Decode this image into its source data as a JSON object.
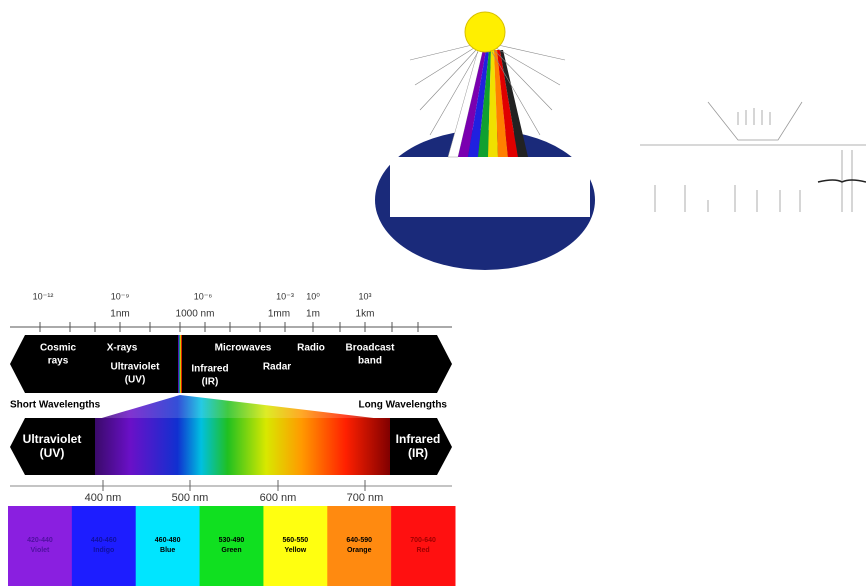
{
  "spectrum": {
    "scale": [
      {
        "power": "10⁻¹²"
      },
      {
        "power": "10⁻⁹",
        "unit": "1nm"
      },
      {
        "power": "10⁻⁶",
        "unit": "1000 nm"
      },
      {
        "power": "10⁻³",
        "unit": "1mm"
      },
      {
        "power": "10⁰",
        "unit": "1m"
      },
      {
        "power": "10³",
        "unit": "1km"
      }
    ],
    "bands": [
      [
        "Cosmic",
        "rays"
      ],
      [
        "X-rays"
      ],
      [
        "Ultraviolet",
        "(UV)"
      ],
      [
        "Infrared",
        "(IR)"
      ],
      [
        "Microwaves"
      ],
      [
        "Radar"
      ],
      [
        "Radio"
      ],
      [
        "Broadcast",
        "band"
      ]
    ],
    "short_label": "Short Wavelengths",
    "long_label": "Long Wavelengths",
    "visible_ends": [
      [
        "Ultraviolet",
        "(UV)"
      ],
      [
        "Infrared",
        "(IR)"
      ]
    ],
    "nm_ticks": [
      "400 nm",
      "500 nm",
      "600 nm",
      "700 nm"
    ],
    "colors": [
      {
        "range": "420-440",
        "name": "Violet"
      },
      {
        "range": "440-460",
        "name": "Indigo"
      },
      {
        "range": "460-480",
        "name": "Blue"
      },
      {
        "range": "530-490",
        "name": "Green"
      },
      {
        "range": "560-550",
        "name": "Yellow"
      },
      {
        "range": "640-590",
        "name": "Orange"
      },
      {
        "range": "700-640",
        "name": "Red"
      }
    ]
  }
}
